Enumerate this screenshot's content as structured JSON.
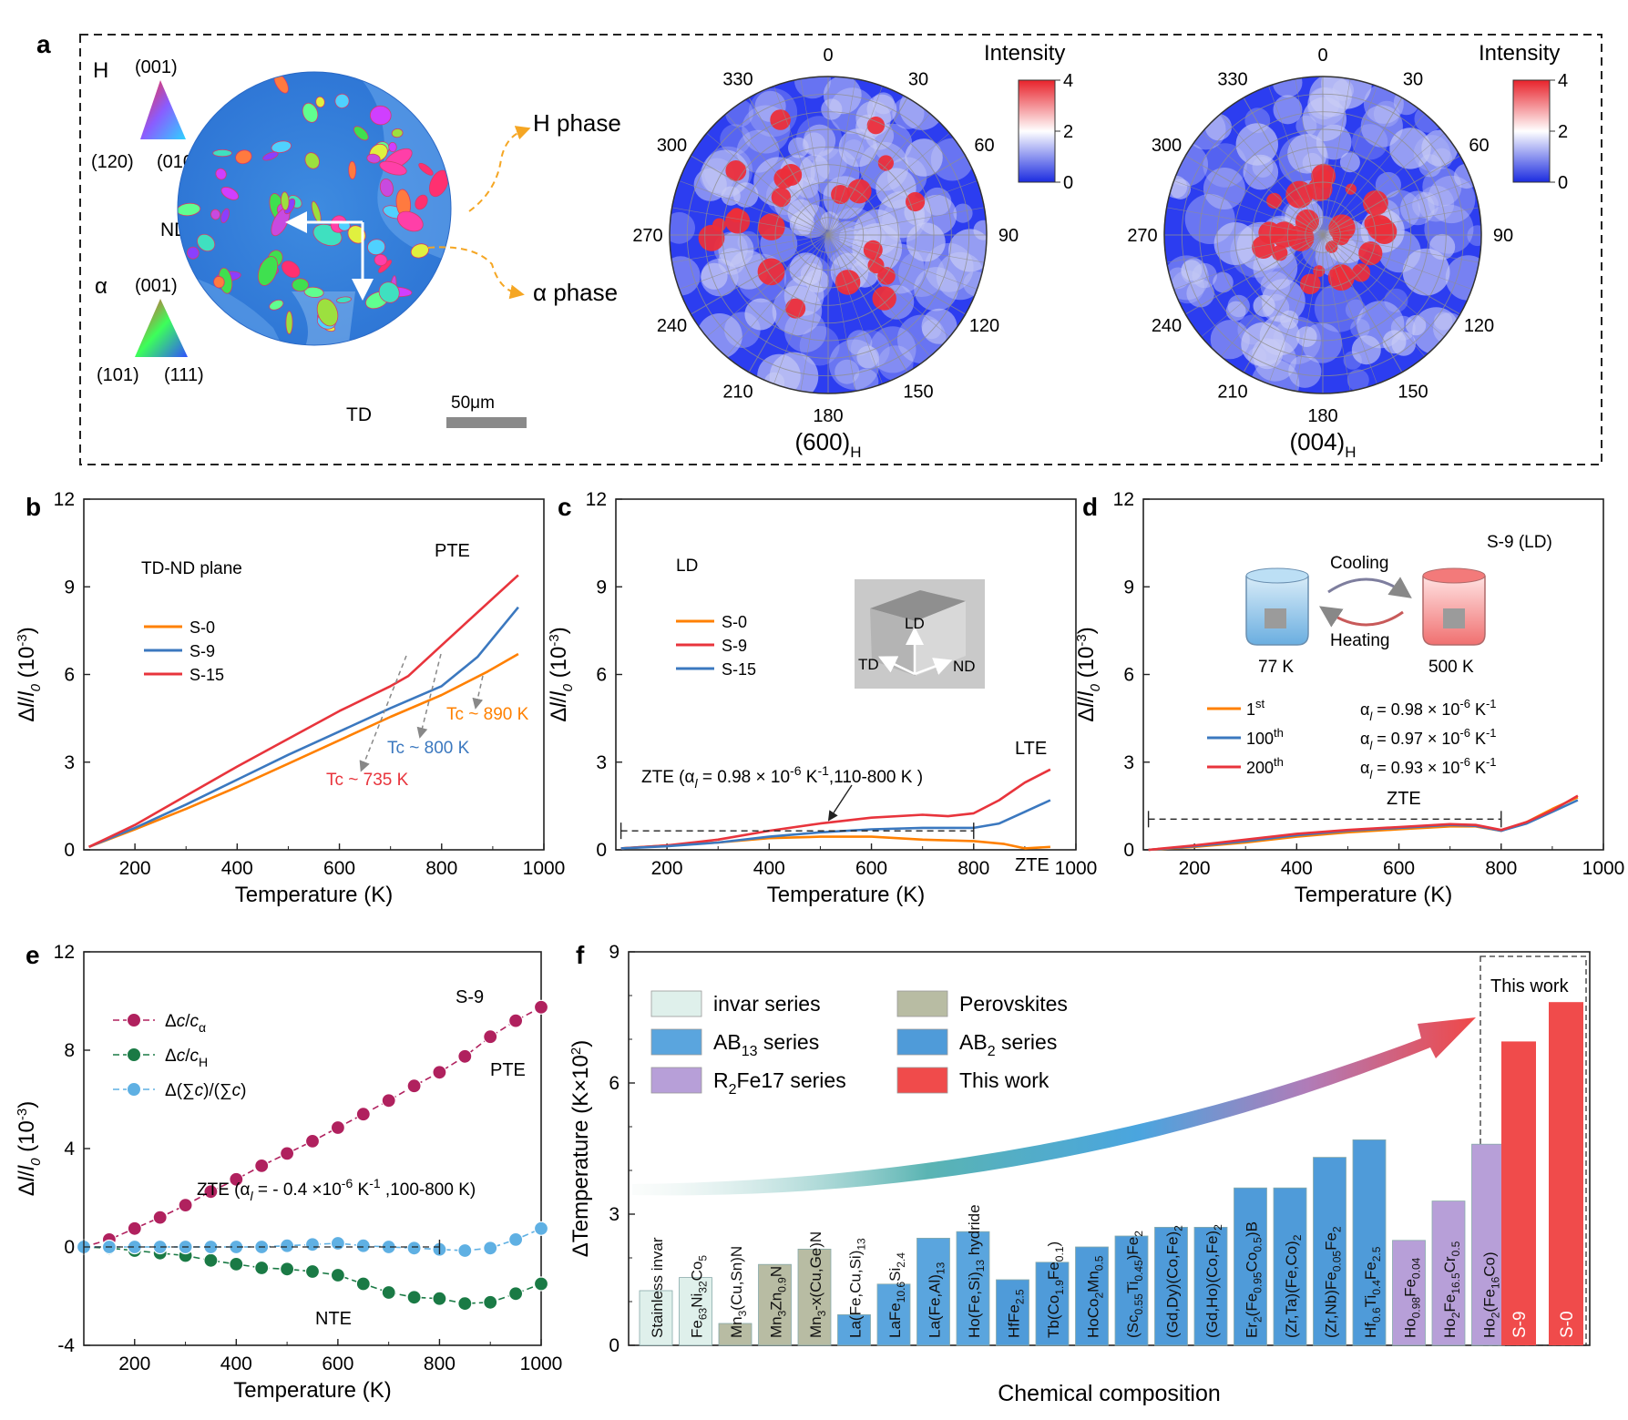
{
  "panel_a": {
    "label": "a",
    "ebsd": {
      "h_legend": {
        "symbol": "H",
        "top": "(001)",
        "left": "(120)",
        "right": "(010)"
      },
      "a_legend": {
        "symbol": "α",
        "top": "(001)",
        "left": "(101)",
        "right": "(111)"
      },
      "axis_nd": "ND",
      "axis_td": "TD",
      "scale_bar": "50μm",
      "h_phase": "H phase",
      "a_phase": "α phase"
    },
    "pole_figures": [
      {
        "title": "(600)",
        "subscript": "H",
        "intensity_label": "Intensity",
        "cbar_ticks": [
          "4",
          "2",
          "0"
        ],
        "angles": [
          "0",
          "30",
          "60",
          "90",
          "120",
          "150",
          "180",
          "210",
          "240",
          "270",
          "300",
          "330"
        ]
      },
      {
        "title": "(004)",
        "subscript": "H",
        "intensity_label": "Intensity",
        "cbar_ticks": [
          "4",
          "2",
          "0"
        ],
        "angles": [
          "0",
          "30",
          "60",
          "90",
          "120",
          "150",
          "180",
          "210",
          "240",
          "270",
          "300",
          "330"
        ]
      }
    ]
  },
  "colors": {
    "orange": "#ff8000",
    "red": "#e8343c",
    "blue": "#3b78bf",
    "magenta": "#b0215e",
    "green": "#1a7a45",
    "lightblue": "#5fb0e3"
  },
  "chart_data": [
    {
      "panel": "b",
      "type": "line",
      "xlabel": "Temperature (K)",
      "ylabel": "Δl/l0 (10-3)",
      "xlim": [
        100,
        1000
      ],
      "ylim": [
        0,
        12
      ],
      "xticks": [
        "200",
        "400",
        "600",
        "800",
        "1000"
      ],
      "yticks": [
        "0",
        "3",
        "6",
        "9",
        "12"
      ],
      "annotations": {
        "plane": "TD-ND plane",
        "pte": "PTE",
        "tc_890": "Tc ~ 890 K",
        "tc_800": "Tc ~ 800 K",
        "tc_735": "Tc ~ 735 K"
      },
      "series": [
        {
          "name": "S-0",
          "color": "#ff8000",
          "x": [
            110,
            200,
            300,
            400,
            500,
            600,
            700,
            800,
            890,
            950
          ],
          "y": [
            0.1,
            0.7,
            1.4,
            2.15,
            2.95,
            3.75,
            4.55,
            5.3,
            6.1,
            6.7
          ]
        },
        {
          "name": "S-9",
          "color": "#3b78bf",
          "x": [
            110,
            200,
            300,
            400,
            500,
            600,
            700,
            800,
            870,
            950
          ],
          "y": [
            0.1,
            0.75,
            1.55,
            2.4,
            3.25,
            4.05,
            4.85,
            5.6,
            6.6,
            8.3
          ]
        },
        {
          "name": "S-15",
          "color": "#e8343c",
          "x": [
            110,
            200,
            300,
            400,
            500,
            600,
            700,
            735,
            800,
            950
          ],
          "y": [
            0.1,
            0.85,
            1.85,
            2.85,
            3.8,
            4.75,
            5.6,
            5.95,
            7.0,
            9.4
          ]
        }
      ]
    },
    {
      "panel": "c",
      "type": "line",
      "xlabel": "Temperature (K)",
      "ylabel": "Δl/l0 (10-3)",
      "xlim": [
        100,
        1000
      ],
      "ylim": [
        0,
        12
      ],
      "xticks": [
        "200",
        "400",
        "600",
        "800",
        "1000"
      ],
      "yticks": [
        "0",
        "3",
        "6",
        "9",
        "12"
      ],
      "annotations": {
        "direction": "LD",
        "lte": "LTE",
        "zte": "ZTE",
        "zte_text": "ZTE (αl = 0.98 × 10-6 K-1,110-800 K )",
        "cube_ld": "LD",
        "cube_td": "TD",
        "cube_nd": "ND"
      },
      "series": [
        {
          "name": "S-0",
          "color": "#ff8000",
          "x": [
            110,
            200,
            300,
            400,
            500,
            600,
            700,
            800,
            860,
            900,
            950
          ],
          "y": [
            0.05,
            0.15,
            0.25,
            0.4,
            0.45,
            0.45,
            0.35,
            0.3,
            0.2,
            0.05,
            0.1
          ]
        },
        {
          "name": "S-9",
          "color": "#e8343c",
          "x": [
            110,
            200,
            300,
            400,
            500,
            600,
            700,
            750,
            800,
            850,
            900,
            950
          ],
          "y": [
            0.05,
            0.15,
            0.35,
            0.65,
            0.9,
            1.1,
            1.2,
            1.15,
            1.25,
            1.7,
            2.3,
            2.75
          ]
        },
        {
          "name": "S-15",
          "color": "#3b78bf",
          "x": [
            110,
            200,
            300,
            400,
            500,
            600,
            700,
            800,
            850,
            900,
            950
          ],
          "y": [
            0.05,
            0.12,
            0.25,
            0.45,
            0.6,
            0.7,
            0.75,
            0.75,
            0.9,
            1.3,
            1.7
          ]
        }
      ]
    },
    {
      "panel": "d",
      "type": "line",
      "xlabel": "Temperature (K)",
      "ylabel": "Δl/l0 (10-3)",
      "xlim": [
        100,
        1000
      ],
      "ylim": [
        0,
        12
      ],
      "xticks": [
        "200",
        "400",
        "600",
        "800",
        "1000"
      ],
      "yticks": [
        "0",
        "3",
        "6",
        "9",
        "12"
      ],
      "annotations": {
        "sample": "S-9 (LD)",
        "cooling": "Cooling",
        "heating": "Heating",
        "t_low": "77 K",
        "t_high": "500 K",
        "zte": "ZTE"
      },
      "series": [
        {
          "name": "1st",
          "alpha": "αl = 0.98 × 10-6 K-1",
          "color": "#ff8000",
          "x": [
            110,
            200,
            300,
            400,
            500,
            600,
            700,
            750,
            800,
            850,
            900,
            950
          ],
          "y": [
            0.0,
            0.1,
            0.25,
            0.45,
            0.6,
            0.7,
            0.8,
            0.8,
            0.65,
            0.95,
            1.4,
            1.8
          ]
        },
        {
          "name": "100th",
          "alpha": "αl = 0.97 × 10-6 K-1",
          "color": "#3b78bf",
          "x": [
            110,
            200,
            300,
            400,
            500,
            600,
            700,
            750,
            800,
            850,
            900,
            950
          ],
          "y": [
            0.0,
            0.12,
            0.3,
            0.5,
            0.65,
            0.75,
            0.85,
            0.82,
            0.65,
            0.9,
            1.3,
            1.7
          ]
        },
        {
          "name": "200th",
          "alpha": "αl = 0.93 × 10-6 K-1",
          "color": "#e8343c",
          "x": [
            110,
            200,
            300,
            400,
            500,
            600,
            700,
            750,
            800,
            850,
            900,
            950
          ],
          "y": [
            0.0,
            0.15,
            0.35,
            0.55,
            0.68,
            0.78,
            0.88,
            0.85,
            0.68,
            0.95,
            1.35,
            1.85
          ]
        }
      ]
    },
    {
      "panel": "e",
      "type": "line",
      "xlabel": "Temperature (K)",
      "ylabel": "Δl/l0 (10-3)",
      "xlim": [
        100,
        1000
      ],
      "ylim": [
        -4,
        12
      ],
      "xticks": [
        "200",
        "400",
        "600",
        "800",
        "1000"
      ],
      "yticks": [
        "-4",
        "0",
        "4",
        "8",
        "12"
      ],
      "annotations": {
        "sample": "S-9",
        "pte": "PTE",
        "nte": "NTE",
        "zte_text": "ZTE (αl = - 0.4 ×10-6 K-1 ,100-800 K)"
      },
      "x": [
        100,
        150,
        200,
        250,
        300,
        350,
        400,
        450,
        500,
        550,
        600,
        650,
        700,
        750,
        800,
        850,
        900,
        950,
        1000
      ],
      "series": [
        {
          "name": "Δc/cα",
          "color": "#b0215e",
          "y": [
            0.0,
            0.3,
            0.75,
            1.2,
            1.7,
            2.25,
            2.75,
            3.3,
            3.8,
            4.3,
            4.85,
            5.4,
            5.95,
            6.55,
            7.1,
            7.75,
            8.55,
            9.2,
            9.75
          ]
        },
        {
          "name": "Δc/cH",
          "color": "#1a7a45",
          "y": [
            0.0,
            -0.05,
            -0.15,
            -0.25,
            -0.35,
            -0.55,
            -0.7,
            -0.85,
            -0.9,
            -1.0,
            -1.15,
            -1.5,
            -1.85,
            -2.05,
            -2.1,
            -2.3,
            -2.25,
            -1.9,
            -1.5
          ]
        },
        {
          "name": "Δ(∑c)/(∑c)",
          "color": "#5fb0e3",
          "y": [
            0.0,
            0.0,
            0.0,
            0.0,
            0.0,
            0.0,
            0.0,
            0.0,
            0.05,
            0.1,
            0.15,
            0.05,
            0.0,
            -0.05,
            -0.1,
            -0.15,
            -0.05,
            0.3,
            0.75
          ]
        }
      ]
    },
    {
      "panel": "f",
      "type": "bar",
      "xlabel": "Chemical composition",
      "ylabel": "ΔTemperature (K×10²)",
      "ylim": [
        0,
        9
      ],
      "yticks": [
        "0",
        "3",
        "6",
        "9"
      ],
      "this_work_label": "This work",
      "legend": [
        {
          "name": "invar series",
          "color": "#dff0eb"
        },
        {
          "name": "AB13 series",
          "color": "#5aa5de"
        },
        {
          "name": "R2Fe17 series",
          "color": "#b79fd8"
        },
        {
          "name": "Perovskites",
          "color": "#b8bca3"
        },
        {
          "name": "AB2 series",
          "color": "#4f9bd9"
        },
        {
          "name": "This work",
          "color": "#f04b4b"
        }
      ],
      "categories": [
        "Stainless invar",
        "Fe63Ni32Co5",
        "Mn3(Cu,Sn)N",
        "Mn3Zn0.9N",
        "Mn3-x(Cu,Ge)N",
        "La(Fe,Cu,Si)13",
        "LaFe10.6Si2.4",
        "La(Fe,Al)13",
        "Ho(Fe,Si)13 hydride",
        "HfFe2.5",
        "Tb(Co1.9Fe0.1)",
        "HoCo2Mn0.5",
        "(Sc0.55Ti0.45)Fe2",
        "(Gd,Dy)(Co,Fe)2",
        "(Gd,Ho)(Co,Fe)2",
        "Er2(Fe0.95Co0.5)B",
        "(Zr,Ta)(Fe,Co)2",
        "(Zr,Nb)Fe0.05Fe2",
        "Hf0.6Ti0.4Fe2.5",
        "Ho0.98Fe0.04",
        "Ho2Fe16.5Cr0.5",
        "Ho2(Fe16Co)",
        "S-9",
        "S-0"
      ],
      "values": [
        1.25,
        1.55,
        0.5,
        1.85,
        2.2,
        0.7,
        1.4,
        2.45,
        2.6,
        1.5,
        1.9,
        2.25,
        2.5,
        2.7,
        2.7,
        3.6,
        3.6,
        4.3,
        4.7,
        2.4,
        3.3,
        4.6,
        6.95,
        7.85
      ],
      "groups": [
        "invar series",
        "invar series",
        "Perovskites",
        "Perovskites",
        "Perovskites",
        "AB13 series",
        "AB13 series",
        "AB13 series",
        "AB13 series",
        "AB2 series",
        "AB2 series",
        "AB2 series",
        "AB2 series",
        "AB2 series",
        "AB2 series",
        "AB2 series",
        "AB2 series",
        "AB2 series",
        "AB2 series",
        "R2Fe17 series",
        "R2Fe17 series",
        "R2Fe17 series",
        "This work",
        "This work"
      ]
    }
  ]
}
